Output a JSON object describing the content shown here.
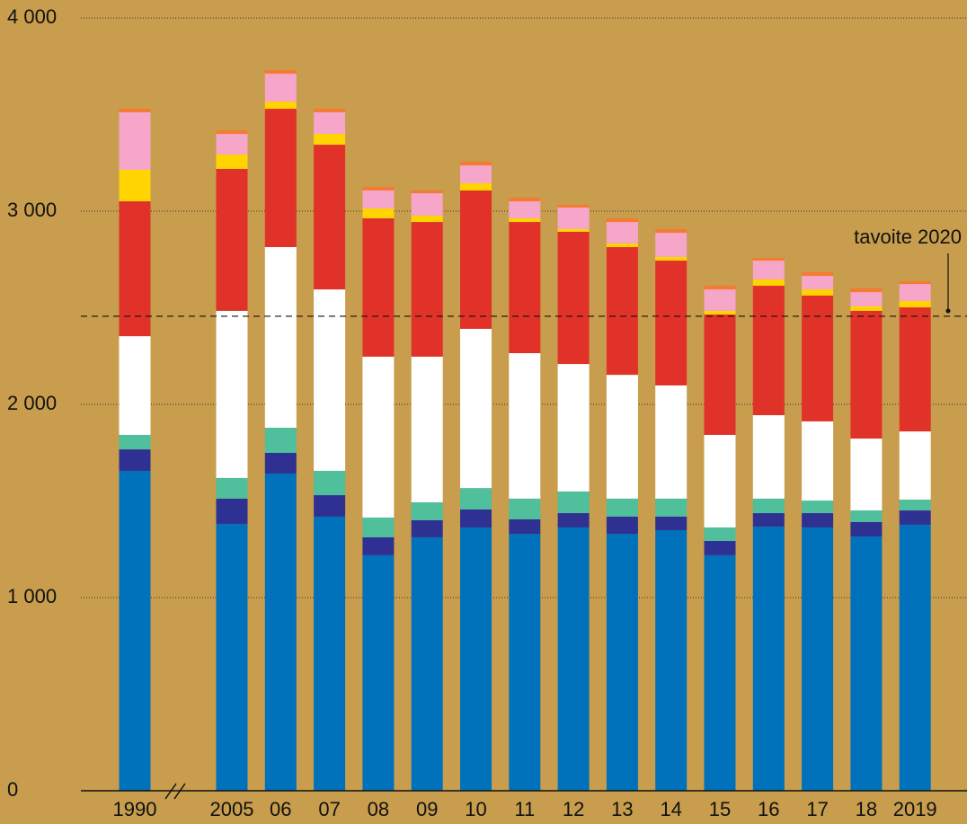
{
  "chart_data": {
    "type": "bar",
    "stacked": true,
    "categories": [
      "1990",
      "2005",
      "06",
      "07",
      "08",
      "09",
      "10",
      "11",
      "12",
      "13",
      "14",
      "15",
      "16",
      "17",
      "18",
      "2019"
    ],
    "series": [
      {
        "color": "#0071bb",
        "values": [
          1656,
          1381,
          1642,
          1419,
          1219,
          1312,
          1363,
          1330,
          1363,
          1330,
          1349,
          1219,
          1367,
          1363,
          1316,
          1377
        ]
      },
      {
        "color": "#2e3192",
        "values": [
          111,
          131,
          107,
          111,
          93,
          88,
          93,
          75,
          74,
          89,
          70,
          74,
          70,
          74,
          75,
          74
        ]
      },
      {
        "color": "#4fbf9c",
        "values": [
          75,
          107,
          130,
          126,
          102,
          93,
          111,
          107,
          112,
          93,
          93,
          70,
          75,
          65,
          60,
          56
        ]
      },
      {
        "color": "#ffffff",
        "values": [
          511,
          865,
          935,
          939,
          833,
          754,
          824,
          753,
          660,
          641,
          586,
          479,
          432,
          410,
          372,
          353
        ]
      },
      {
        "color": "#e1322a",
        "values": [
          698,
          735,
          716,
          749,
          716,
          697,
          716,
          679,
          684,
          661,
          646,
          623,
          670,
          651,
          661,
          642
        ]
      },
      {
        "color": "#ffd400",
        "values": [
          163,
          74,
          37,
          56,
          51,
          33,
          37,
          19,
          14,
          19,
          19,
          19,
          33,
          32,
          23,
          33
        ]
      },
      {
        "color": "#f5a6c9",
        "values": [
          298,
          107,
          145,
          112,
          93,
          116,
          93,
          88,
          112,
          111,
          125,
          111,
          97,
          70,
          74,
          88
        ]
      },
      {
        "color": "#f47b30",
        "values": [
          18,
          19,
          18,
          18,
          19,
          14,
          19,
          19,
          14,
          19,
          19,
          19,
          14,
          19,
          19,
          14
        ]
      }
    ],
    "ylim": [
      0,
      4000
    ],
    "yticks": [
      {
        "value": 0,
        "label": "0"
      },
      {
        "value": 1000,
        "label": "1 000"
      },
      {
        "value": 2000,
        "label": "2 000"
      },
      {
        "value": 3000,
        "label": "3 000"
      },
      {
        "value": 4000,
        "label": "4 000"
      }
    ],
    "grid": true,
    "target": {
      "value": 2456,
      "label": "tavoite 2020"
    }
  }
}
